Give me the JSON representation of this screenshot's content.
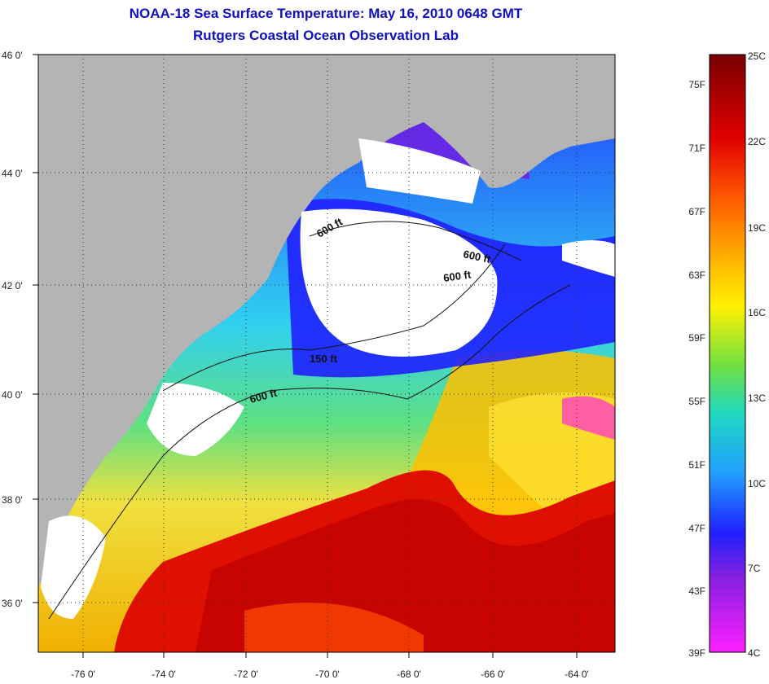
{
  "title": {
    "line1": "NOAA-18 Sea Surface Temperature:  May 16, 2010 0648 GMT",
    "line2": "Rutgers Coastal Ocean Observation Lab"
  },
  "lat_ticks": [
    "46 0'",
    "44 0'",
    "42 0'",
    "40 0'",
    "38 0'",
    "36 0'"
  ],
  "lon_ticks": [
    "-76 0'",
    "-74 0'",
    "-72 0'",
    "-70 0'",
    "-68 0'",
    "-66 0'",
    "-64 0'"
  ],
  "contours": [
    {
      "label": "600 ft"
    },
    {
      "label": "600 ft"
    },
    {
      "label": "600 ft"
    },
    {
      "label": "150 ft"
    },
    {
      "label": "600 ft"
    }
  ],
  "colorbar": {
    "fahrenheit": [
      "75F",
      "71F",
      "67F",
      "63F",
      "59F",
      "55F",
      "51F",
      "47F",
      "43F",
      "39F"
    ],
    "celsius": [
      "25C",
      "22C",
      "19C",
      "16C",
      "13C",
      "10C",
      "7C",
      "4C"
    ]
  },
  "colors": {
    "land": "#b4b4b4",
    "cloud": "#ffffff",
    "title": "#1010c0"
  }
}
